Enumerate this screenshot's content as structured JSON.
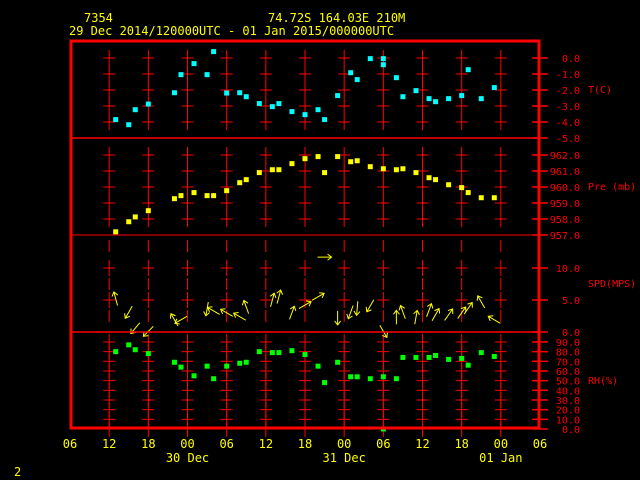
{
  "header": {
    "station": "7354",
    "location": "74.72S   164.03E   210M",
    "period": "29 Dec 2014/120000UTC - 01 Jan 2015/000000UTC"
  },
  "footer": {
    "page": "2"
  },
  "colors": {
    "frame": "#ff0000",
    "text": "#ffff00",
    "temp": "#00ffff",
    "pressure": "#ffff00",
    "wind": "#ffff00",
    "rh": "#00ff00"
  },
  "chart_data": {
    "type": "scatter",
    "x_unit": "hours since 29 Dec 06 UTC",
    "xlim": [
      0,
      72
    ],
    "x_ticks": [
      {
        "h": 0,
        "label": "06"
      },
      {
        "h": 6,
        "label": "12"
      },
      {
        "h": 12,
        "label": "18"
      },
      {
        "h": 18,
        "label": "00"
      },
      {
        "h": 24,
        "label": "06"
      },
      {
        "h": 30,
        "label": "12"
      },
      {
        "h": 36,
        "label": "18"
      },
      {
        "h": 42,
        "label": "00"
      },
      {
        "h": 48,
        "label": "06"
      },
      {
        "h": 54,
        "label": "12"
      },
      {
        "h": 60,
        "label": "18"
      },
      {
        "h": 66,
        "label": "00"
      },
      {
        "h": 72,
        "label": "06"
      }
    ],
    "date_labels": [
      {
        "h": 18,
        "label": "30 Dec"
      },
      {
        "h": 42,
        "label": "31 Dec"
      },
      {
        "h": 66,
        "label": "01 Jan"
      }
    ],
    "panels": {
      "temperature": {
        "label": "T(C)",
        "ylim": [
          -5,
          0
        ],
        "ticks": [
          {
            "v": 0,
            "label": "0.0"
          },
          {
            "v": -1,
            "label": "-1.0"
          },
          {
            "v": -2,
            "label": "-2.0"
          },
          {
            "v": -3,
            "label": "-3.0"
          },
          {
            "v": -4,
            "label": "-4.0"
          },
          {
            "v": -5,
            "label": "-5.0"
          }
        ],
        "points": [
          [
            7,
            -3.85
          ],
          [
            9,
            -4.17
          ],
          [
            10,
            -3.23
          ],
          [
            12,
            -2.88
          ],
          [
            16,
            -2.17
          ],
          [
            17,
            -1.04
          ],
          [
            19,
            -0.35
          ],
          [
            21,
            -1.04
          ],
          [
            22,
            0.4
          ],
          [
            24,
            -2.19
          ],
          [
            26,
            -2.17
          ],
          [
            27,
            -2.42
          ],
          [
            29,
            -2.85
          ],
          [
            31,
            -3.04
          ],
          [
            32,
            -2.85
          ],
          [
            34,
            -3.35
          ],
          [
            36,
            -3.54
          ],
          [
            38,
            -3.23
          ],
          [
            39,
            -3.85
          ],
          [
            41,
            -2.35
          ],
          [
            43,
            -0.92
          ],
          [
            44,
            -1.35
          ],
          [
            46,
            -0.04
          ],
          [
            48,
            -0.04
          ],
          [
            48,
            -0.42
          ],
          [
            50,
            -1.23
          ],
          [
            51,
            -2.42
          ],
          [
            53,
            -2.04
          ],
          [
            55,
            -2.54
          ],
          [
            56,
            -2.73
          ],
          [
            58,
            -2.54
          ],
          [
            60,
            -2.35
          ],
          [
            61,
            -0.73
          ],
          [
            63,
            -2.54
          ],
          [
            65,
            -1.85
          ]
        ]
      },
      "pressure": {
        "label": "Pre (mb)",
        "ylim": [
          957,
          962
        ],
        "ticks": [
          {
            "v": 962,
            "label": "962.0"
          },
          {
            "v": 961,
            "label": "961.0"
          },
          {
            "v": 960,
            "label": "960.0"
          },
          {
            "v": 959,
            "label": "959.0"
          },
          {
            "v": 958,
            "label": "958.0"
          },
          {
            "v": 957,
            "label": "957.0"
          }
        ],
        "points": [
          [
            7,
            957.2
          ],
          [
            9,
            957.83
          ],
          [
            10,
            958.13
          ],
          [
            12,
            958.52
          ],
          [
            16,
            959.27
          ],
          [
            17,
            959.46
          ],
          [
            19,
            959.65
          ],
          [
            21,
            959.46
          ],
          [
            22,
            959.46
          ],
          [
            24,
            959.77
          ],
          [
            26,
            960.27
          ],
          [
            27,
            960.46
          ],
          [
            29,
            960.9
          ],
          [
            31,
            961.08
          ],
          [
            32,
            961.08
          ],
          [
            34,
            961.46
          ],
          [
            36,
            961.77
          ],
          [
            38,
            961.9
          ],
          [
            39,
            960.9
          ],
          [
            41,
            961.9
          ],
          [
            43,
            961.58
          ],
          [
            44,
            961.64
          ],
          [
            46,
            961.27
          ],
          [
            48,
            961.14
          ],
          [
            50,
            961.08
          ],
          [
            51,
            961.14
          ],
          [
            53,
            960.9
          ],
          [
            55,
            960.58
          ],
          [
            56,
            960.46
          ],
          [
            58,
            960.14
          ],
          [
            60,
            959.96
          ],
          [
            61,
            959.65
          ],
          [
            63,
            959.33
          ],
          [
            65,
            959.33
          ]
        ]
      },
      "wind": {
        "label": "SPD(MPS)",
        "ylim": [
          0,
          15
        ],
        "ticks": [
          {
            "v": 10,
            "label": "10.0"
          },
          {
            "v": 5,
            "label": "5.0"
          },
          {
            "v": 0,
            "label": "0.0"
          }
        ],
        "points_note": "[hour, speed m/s, arrow direction deg clockwise from up]",
        "points": [
          [
            7,
            5.2,
            345
          ],
          [
            9,
            3.1,
            210
          ],
          [
            10,
            0.6,
            220
          ],
          [
            12,
            0.1,
            225
          ],
          [
            16,
            1.9,
            330
          ],
          [
            17,
            1.9,
            240
          ],
          [
            21,
            3.6,
            190
          ],
          [
            22,
            3.3,
            300
          ],
          [
            24,
            3.0,
            300
          ],
          [
            26,
            2.4,
            300
          ],
          [
            27,
            3.9,
            340
          ],
          [
            31,
            5.0,
            15
          ],
          [
            32,
            5.5,
            15
          ],
          [
            34,
            3.0,
            20
          ],
          [
            36,
            4.2,
            60
          ],
          [
            38,
            5.5,
            60
          ],
          [
            39,
            11.7,
            90
          ],
          [
            41,
            2.2,
            180
          ],
          [
            43,
            3.1,
            200
          ],
          [
            44,
            3.7,
            185
          ],
          [
            46,
            4.1,
            210
          ],
          [
            48,
            0.1,
            150
          ],
          [
            50,
            2.3,
            0
          ],
          [
            51,
            3.1,
            340
          ],
          [
            53,
            2.3,
            10
          ],
          [
            55,
            3.4,
            20
          ],
          [
            56,
            2.7,
            30
          ],
          [
            58,
            2.7,
            35
          ],
          [
            60,
            3.0,
            35
          ],
          [
            61,
            3.7,
            35
          ],
          [
            63,
            4.7,
            330
          ],
          [
            65,
            1.9,
            300
          ]
        ]
      },
      "rh": {
        "label": "RH(%)",
        "ylim": [
          0,
          90
        ],
        "ticks": [
          {
            "v": 90,
            "label": "90.0"
          },
          {
            "v": 80,
            "label": "80.0"
          },
          {
            "v": 70,
            "label": "70.0"
          },
          {
            "v": 60,
            "label": "60.0"
          },
          {
            "v": 50,
            "label": "50.0"
          },
          {
            "v": 40,
            "label": "40.0"
          },
          {
            "v": 30,
            "label": "30.0"
          },
          {
            "v": 20,
            "label": "20.0"
          },
          {
            "v": 10,
            "label": "10.0"
          },
          {
            "v": 0,
            "label": "0.0"
          }
        ],
        "points": [
          [
            7,
            80
          ],
          [
            9,
            87
          ],
          [
            10,
            82
          ],
          [
            12,
            78
          ],
          [
            16,
            69
          ],
          [
            17,
            64
          ],
          [
            19,
            55
          ],
          [
            21,
            65
          ],
          [
            22,
            52
          ],
          [
            24,
            65
          ],
          [
            26,
            68
          ],
          [
            27,
            69
          ],
          [
            29,
            80
          ],
          [
            31,
            79
          ],
          [
            32,
            79
          ],
          [
            34,
            81
          ],
          [
            36,
            77
          ],
          [
            38,
            65
          ],
          [
            39,
            48
          ],
          [
            41,
            69
          ],
          [
            43,
            54
          ],
          [
            44,
            54
          ],
          [
            46,
            52
          ],
          [
            48,
            54
          ],
          [
            48,
            0
          ],
          [
            50,
            52
          ],
          [
            51,
            74
          ],
          [
            53,
            74
          ],
          [
            55,
            74
          ],
          [
            56,
            76
          ],
          [
            58,
            72
          ],
          [
            60,
            73
          ],
          [
            61,
            66
          ],
          [
            63,
            79
          ],
          [
            65,
            75
          ]
        ]
      }
    }
  }
}
